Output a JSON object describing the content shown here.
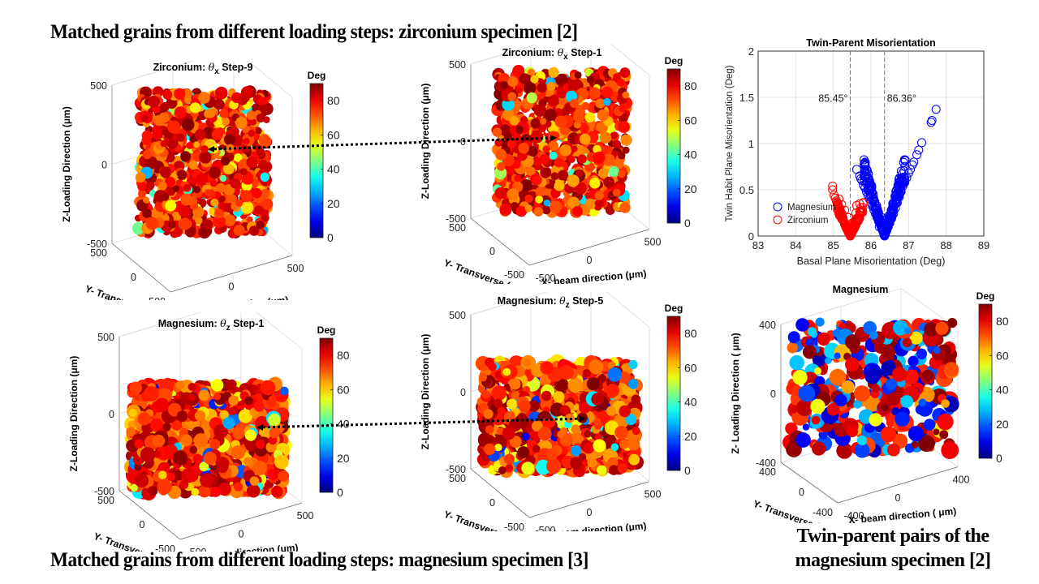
{
  "slide": {
    "title_top": "Matched grains from different loading steps: zirconium  specimen [2]",
    "title_bottom": "Matched grains from different loading steps: magnesium specimen [3]",
    "caption_right_line1": "Twin-parent pairs of the",
    "caption_right_line2": "magnesium specimen [2]"
  },
  "colormap": {
    "name": "jet",
    "label": "Deg",
    "range": [
      0,
      90
    ],
    "ticks": [
      0,
      20,
      40,
      60,
      80
    ]
  },
  "chart_data": [
    {
      "id": "zr-step9",
      "type": "scatter3d",
      "title_prefix": "Zirconium: ",
      "theta": "θ",
      "theta_sub": "x",
      "title_suffix": " Step-9",
      "xlabel": "X- beam direction (μm)",
      "ylabel": "Y- Transverse ( μm)",
      "zlabel": "Z-Loading Direction (μm)",
      "xticks": [
        "-500",
        "0",
        "500"
      ],
      "yticks": [
        "500",
        "0",
        "-500"
      ],
      "zticks": [
        "500",
        "0",
        "-500"
      ],
      "xlim": [
        -500,
        500
      ],
      "ylim": [
        -500,
        500
      ],
      "zlim": [
        -500,
        500
      ],
      "colorbar_label": "Deg",
      "colorbar_ticks": [
        "80",
        "60",
        "40",
        "20",
        "0"
      ],
      "value_distribution": "mostly 65-90 deg (red/dark red), sparse 30-60 deg (cyan/green/yellow)",
      "shape": "cube"
    },
    {
      "id": "zr-step1",
      "type": "scatter3d",
      "title_prefix": "Zirconium: ",
      "theta": "θ",
      "theta_sub": "x",
      "title_suffix": " Step-1",
      "xlabel": "X- beam direction (μm)",
      "ylabel": "Y- Transverse ( μm)",
      "zlabel": "Z-Loading Direction (μm)",
      "xticks": [
        "-500",
        "0",
        "500"
      ],
      "yticks": [
        "500",
        "0",
        "-500"
      ],
      "zticks": [
        "500",
        "0",
        "-500"
      ],
      "xlim": [
        -500,
        500
      ],
      "ylim": [
        -500,
        500
      ],
      "zlim": [
        -500,
        500
      ],
      "colorbar_label": "Deg",
      "colorbar_ticks": [
        "80",
        "60",
        "40",
        "20",
        "0"
      ],
      "value_distribution": "mostly 65-90 deg, sparse 30-60 deg",
      "shape": "cube"
    },
    {
      "id": "twin-parent",
      "type": "scatter",
      "title": "Twin-Parent Misorientation",
      "xlabel": "Basal Plane Misorientation (Deg)",
      "ylabel": "Twin Habit Plane Misorientation (Deg)",
      "xlim": [
        83,
        89
      ],
      "ylim": [
        0,
        2
      ],
      "xticks": [
        83,
        84,
        85,
        86,
        87,
        88,
        89
      ],
      "yticks": [
        0,
        0.5,
        1,
        1.5,
        2
      ],
      "ytick_labels": [
        "0",
        "0.5",
        "1",
        "1.5",
        "2"
      ],
      "grid": true,
      "legend_position": "bottom-left",
      "reference_lines": [
        {
          "x": 85.45,
          "label": "85.45°"
        },
        {
          "x": 86.36,
          "label": "86.36°"
        }
      ],
      "series": [
        {
          "name": "Magnesium",
          "color": "#0000ff",
          "marker": "open-circle",
          "points": [
            [
              85.62,
              0.72
            ],
            [
              85.7,
              0.65
            ],
            [
              85.73,
              0.62
            ],
            [
              85.76,
              0.6
            ],
            [
              85.8,
              0.55
            ],
            [
              85.84,
              0.52
            ],
            [
              85.88,
              0.48
            ],
            [
              85.92,
              0.44
            ],
            [
              85.96,
              0.4
            ],
            [
              86.0,
              0.36
            ],
            [
              86.04,
              0.32
            ],
            [
              86.08,
              0.28
            ],
            [
              86.12,
              0.24
            ],
            [
              86.16,
              0.2
            ],
            [
              86.2,
              0.16
            ],
            [
              86.25,
              0.12
            ],
            [
              86.3,
              0.07
            ],
            [
              86.34,
              0.03
            ],
            [
              86.36,
              0.0
            ],
            [
              86.38,
              0.02
            ],
            [
              86.42,
              0.06
            ],
            [
              86.46,
              0.1
            ],
            [
              86.5,
              0.14
            ],
            [
              86.55,
              0.19
            ],
            [
              86.6,
              0.24
            ],
            [
              86.65,
              0.3
            ],
            [
              86.7,
              0.36
            ],
            [
              86.75,
              0.42
            ],
            [
              86.8,
              0.48
            ],
            [
              86.85,
              0.54
            ],
            [
              86.9,
              0.58
            ],
            [
              86.95,
              0.63
            ],
            [
              87.0,
              0.68
            ],
            [
              87.05,
              0.72
            ],
            [
              87.1,
              0.77
            ],
            [
              87.14,
              0.8
            ],
            [
              87.22,
              0.88
            ],
            [
              87.27,
              0.93
            ],
            [
              87.35,
              1.01
            ],
            [
              87.6,
              1.23
            ],
            [
              87.62,
              1.25
            ],
            [
              87.73,
              1.37
            ],
            [
              86.28,
              0.2
            ],
            [
              86.4,
              0.18
            ],
            [
              86.22,
              0.1
            ],
            [
              86.48,
              0.22
            ],
            [
              86.58,
              0.32
            ]
          ]
        },
        {
          "name": "Zirconium",
          "color": "#ff0000",
          "marker": "open-circle",
          "points": [
            [
              84.98,
              0.54
            ],
            [
              84.98,
              0.5
            ],
            [
              85.02,
              0.44
            ],
            [
              85.05,
              0.41
            ],
            [
              85.08,
              0.38
            ],
            [
              85.1,
              0.36
            ],
            [
              85.12,
              0.33
            ],
            [
              85.14,
              0.3
            ],
            [
              85.17,
              0.27
            ],
            [
              85.2,
              0.24
            ],
            [
              85.23,
              0.21
            ],
            [
              85.26,
              0.18
            ],
            [
              85.29,
              0.15
            ],
            [
              85.32,
              0.12
            ],
            [
              85.35,
              0.09
            ],
            [
              85.38,
              0.06
            ],
            [
              85.41,
              0.03
            ],
            [
              85.45,
              0.0
            ],
            [
              85.48,
              0.04
            ],
            [
              85.52,
              0.08
            ],
            [
              85.55,
              0.12
            ],
            [
              85.58,
              0.17
            ],
            [
              85.6,
              0.25
            ],
            [
              85.62,
              0.33
            ],
            [
              85.7,
              0.35
            ],
            [
              85.15,
              0.4
            ],
            [
              85.22,
              0.34
            ],
            [
              85.3,
              0.28
            ],
            [
              85.4,
              0.2
            ],
            [
              85.5,
              0.14
            ]
          ]
        }
      ]
    },
    {
      "id": "mg-step1",
      "type": "scatter3d",
      "title_prefix": "Magnesium: ",
      "theta": "θ",
      "theta_sub": "z",
      "title_suffix": " Step-1",
      "xlabel": "X- beam direction (μm)",
      "ylabel": "Y- Transverse ( μm)",
      "zlabel": "Z-Loading Direction (μm)",
      "xticks": [
        "-500",
        "0",
        "500"
      ],
      "yticks": [
        "500",
        "0",
        "-500"
      ],
      "zticks": [
        "500",
        "0",
        "-500"
      ],
      "xlim": [
        -500,
        500
      ],
      "ylim": [
        -500,
        500
      ],
      "zlim": [
        -500,
        500
      ],
      "colorbar_label": "Deg",
      "colorbar_ticks": [
        "80",
        "60",
        "40",
        "20",
        "0"
      ],
      "value_distribution": "mostly 60-90 deg, more yellow/orange, sparse blue/cyan",
      "shape": "flat-box"
    },
    {
      "id": "mg-step5",
      "type": "scatter3d",
      "title_prefix": "Magnesium: ",
      "theta": "θ",
      "theta_sub": "z",
      "title_suffix": " Step-5",
      "xlabel": "X- beam direction (μm)",
      "ylabel": "Y- Transverse ( μm)",
      "zlabel": "Z-Loading Direction (μm)",
      "xticks": [
        "-500",
        "0",
        "500"
      ],
      "yticks": [
        "500",
        "0",
        "-500"
      ],
      "zticks": [
        "500",
        "0",
        "-500"
      ],
      "xlim": [
        -500,
        500
      ],
      "ylim": [
        -500,
        500
      ],
      "zlim": [
        -500,
        500
      ],
      "colorbar_label": "Deg",
      "colorbar_ticks": [
        "80",
        "60",
        "40",
        "20",
        "0"
      ],
      "value_distribution": "mostly 60-90 deg, sparse blue/cyan",
      "shape": "flat-box"
    },
    {
      "id": "mg-twins",
      "type": "scatter3d",
      "title_prefix": "Magnesium",
      "theta": "",
      "theta_sub": "",
      "title_suffix": "",
      "xlabel": "X- beam direction ( μm)",
      "ylabel": "Y- Transverse ( μm)",
      "zlabel": "Z- Loading Direction ( μm)",
      "xticks": [
        "-400",
        "0",
        "400"
      ],
      "yticks": [
        "400",
        "0",
        "-400"
      ],
      "zticks": [
        "400",
        "0",
        "-400"
      ],
      "xlim": [
        -400,
        400
      ],
      "ylim": [
        -400,
        400
      ],
      "zlim": [
        -400,
        400
      ],
      "colorbar_label": "Deg",
      "colorbar_ticks": [
        "80",
        "60",
        "40",
        "20",
        "0"
      ],
      "value_distribution": "bimodal: red/dark red (80-90) and blue/cyan (5-30), sparse grains",
      "shape": "sparse"
    }
  ],
  "arrows": [
    {
      "name": "zr-match-arrow",
      "from": "zr-step1",
      "to": "zr-step9",
      "style": "dotted",
      "heads": "both"
    },
    {
      "name": "mg-match-arrow",
      "from": "mg-step1",
      "to": "mg-step5",
      "style": "dotted",
      "heads": "both"
    }
  ]
}
